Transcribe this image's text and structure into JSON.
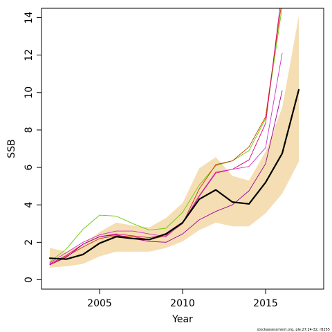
{
  "chart_data": {
    "type": "line",
    "xlabel": "Year",
    "ylabel": "SSB",
    "xlim": [
      2001.5,
      2018.5
    ],
    "ylim": [
      -0.5,
      14.5
    ],
    "x_ticks": [
      2005,
      2010,
      2015
    ],
    "y_ticks": [
      0,
      2,
      4,
      6,
      8,
      10,
      12,
      14
    ],
    "grid": false,
    "band": {
      "color": "#f5deb3",
      "x": [
        2002,
        2003,
        2004,
        2005,
        2006,
        2007,
        2008,
        2009,
        2010,
        2011,
        2012,
        2013,
        2014,
        2015,
        2016,
        2017
      ],
      "lower": [
        0.65,
        0.72,
        0.85,
        1.25,
        1.5,
        1.5,
        1.5,
        1.7,
        2.05,
        2.65,
        3.05,
        2.85,
        2.85,
        3.55,
        4.6,
        6.3
      ],
      "upper": [
        1.7,
        1.5,
        1.9,
        2.55,
        3.05,
        2.9,
        2.8,
        3.3,
        4.1,
        5.95,
        6.55,
        5.55,
        5.3,
        6.85,
        9.2,
        14.1
      ]
    },
    "series": [
      {
        "color": "#000000",
        "width": 2.2,
        "x": [
          2002,
          2003,
          2004,
          2005,
          2006,
          2007,
          2008,
          2009,
          2010,
          2011,
          2012,
          2013,
          2014,
          2015,
          2016,
          2017
        ],
        "values": [
          1.15,
          1.1,
          1.35,
          1.95,
          2.3,
          2.2,
          2.15,
          2.45,
          3.05,
          4.3,
          4.8,
          4.15,
          4.05,
          5.2,
          6.75,
          10.15
        ]
      },
      {
        "color": "#66cc00",
        "width": 0.9,
        "x": [
          2002,
          2003,
          2004,
          2005,
          2006,
          2007,
          2008,
          2009,
          2010,
          2011,
          2012,
          2013,
          2014,
          2015,
          2016
        ],
        "values": [
          0.95,
          1.65,
          2.7,
          3.45,
          3.4,
          3.0,
          2.65,
          2.75,
          3.6,
          5.05,
          6.1,
          6.35,
          6.9,
          8.6,
          14.6
        ]
      },
      {
        "color": "#cc3300",
        "width": 0.9,
        "x": [
          2002,
          2003,
          2004,
          2005,
          2006,
          2007,
          2008,
          2009,
          2010,
          2011,
          2012,
          2013,
          2014,
          2015,
          2016
        ],
        "values": [
          0.8,
          1.25,
          1.75,
          2.2,
          2.35,
          2.3,
          2.15,
          2.35,
          3.0,
          4.85,
          6.15,
          6.35,
          7.1,
          8.7,
          15.0
        ]
      },
      {
        "color": "#e60073",
        "width": 0.9,
        "x": [
          2002,
          2003,
          2004,
          2005,
          2006,
          2007,
          2008,
          2009,
          2010,
          2011,
          2012,
          2013,
          2014,
          2015,
          2016
        ],
        "values": [
          0.85,
          1.3,
          1.9,
          2.3,
          2.45,
          2.35,
          2.25,
          2.4,
          3.05,
          4.45,
          5.7,
          5.9,
          6.4,
          8.35,
          15.5
        ]
      },
      {
        "color": "#cc33cc",
        "width": 0.9,
        "x": [
          2002,
          2003,
          2004,
          2005,
          2006,
          2007,
          2008,
          2009,
          2010,
          2011,
          2012,
          2013,
          2014,
          2015,
          2016
        ],
        "values": [
          0.9,
          1.45,
          2.0,
          2.4,
          2.6,
          2.6,
          2.45,
          2.3,
          3.05,
          4.5,
          5.75,
          5.9,
          6.05,
          7.05,
          12.1
        ]
      },
      {
        "color": "#990099",
        "width": 0.9,
        "x": [
          2002,
          2003,
          2004,
          2005,
          2006,
          2007,
          2008,
          2009,
          2010,
          2011,
          2012,
          2013,
          2014,
          2015,
          2016
        ],
        "values": [
          0.8,
          1.2,
          1.9,
          2.3,
          2.4,
          2.2,
          2.05,
          2.0,
          2.45,
          3.2,
          3.65,
          4.0,
          4.75,
          6.2,
          10.1
        ]
      }
    ],
    "credit": "stockassessment.org, ple.27.24-32, r8255"
  }
}
